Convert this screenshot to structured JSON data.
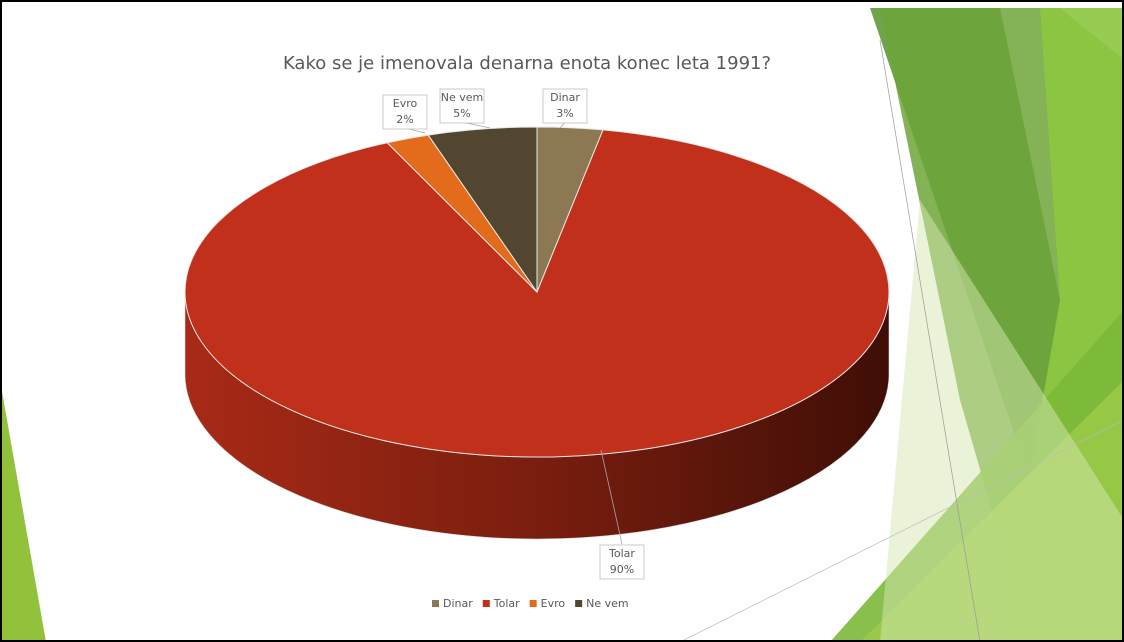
{
  "chart_data": {
    "type": "pie",
    "title": "Kako se je imenovala denarna enota konec leta 1991?",
    "categories": [
      "Dinar",
      "Tolar",
      "Evro",
      "Ne vem"
    ],
    "values": [
      3,
      90,
      2,
      5
    ],
    "value_labels": [
      "3%",
      "90%",
      "2%",
      "5%"
    ],
    "colors": [
      "#8c7853",
      "#c0301a",
      "#e36c1c",
      "#524630"
    ],
    "legend": "bottom"
  }
}
